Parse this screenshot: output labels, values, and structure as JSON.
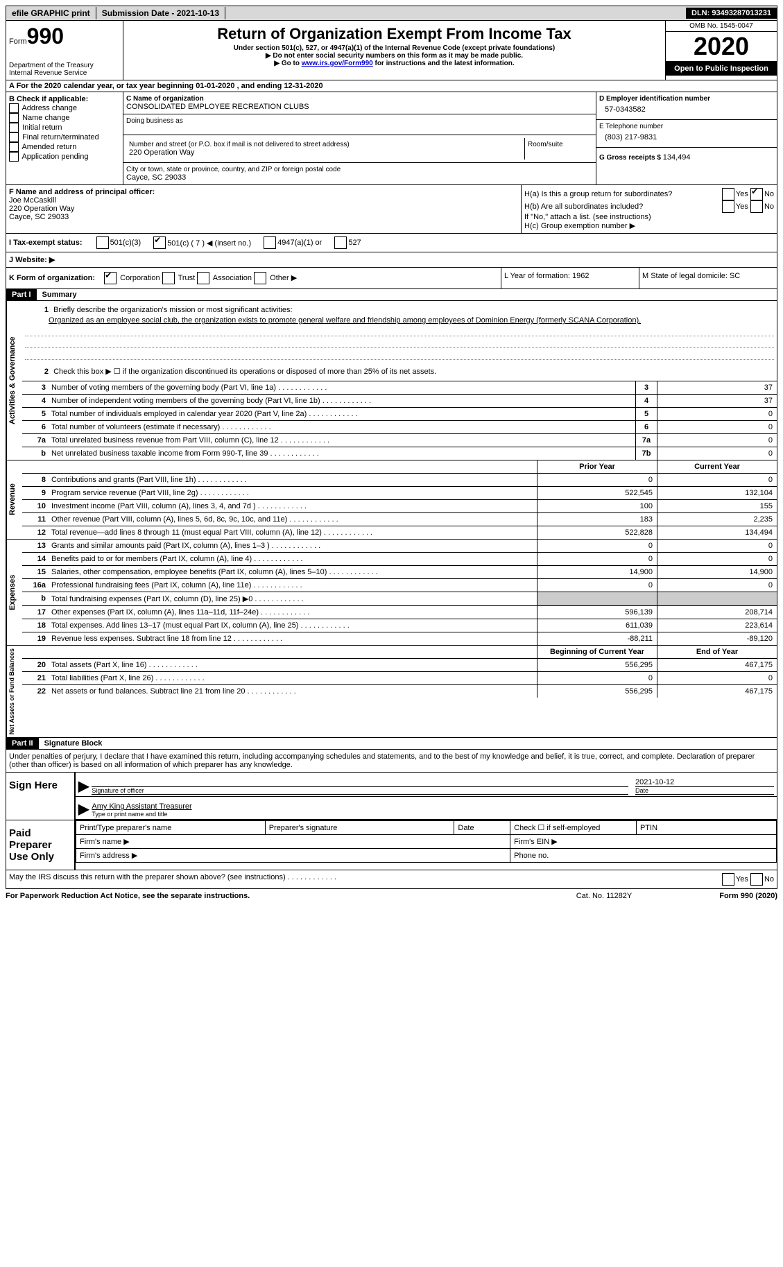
{
  "topbar": {
    "efile": "efile GRAPHIC print",
    "submission": "Submission Date - 2021-10-13",
    "dln": "DLN: 93493287013231"
  },
  "header": {
    "form_word": "Form",
    "form_num": "990",
    "dept1": "Department of the Treasury",
    "dept2": "Internal Revenue Service",
    "title": "Return of Organization Exempt From Income Tax",
    "sub1": "Under section 501(c), 527, or 4947(a)(1) of the Internal Revenue Code (except private foundations)",
    "sub2": "▶ Do not enter social security numbers on this form as it may be made public.",
    "sub3_pre": "▶ Go to ",
    "sub3_link": "www.irs.gov/Form990",
    "sub3_post": " for instructions and the latest information.",
    "omb": "OMB No. 1545-0047",
    "year": "2020",
    "open": "Open to Public Inspection"
  },
  "rowA": "A For the 2020 calendar year, or tax year beginning 01-01-2020     , and ending 12-31-2020",
  "colB": {
    "label": "B Check if applicable:",
    "opts": [
      "Address change",
      "Name change",
      "Initial return",
      "Final return/terminated",
      "Amended return",
      "Application pending"
    ]
  },
  "colC": {
    "name_label": "C Name of organization",
    "name": "CONSOLIDATED EMPLOYEE RECREATION CLUBS",
    "dba_label": "Doing business as",
    "street_label": "Number and street (or P.O. box if mail is not delivered to street address)",
    "room_label": "Room/suite",
    "street": "220 Operation Way",
    "city_label": "City or town, state or province, country, and ZIP or foreign postal code",
    "city": "Cayce, SC  29033"
  },
  "colDE": {
    "d_label": "D Employer identification number",
    "ein": "57-0343582",
    "e_label": "E Telephone number",
    "phone": "(803) 217-9831",
    "g_label": "G Gross receipts $ ",
    "g_val": "134,494"
  },
  "F": {
    "label": "F Name and address of principal officer:",
    "l1": "Joe McCaskill",
    "l2": "220 Operation Way",
    "l3": "Cayce, SC  29033"
  },
  "H": {
    "a": "H(a)  Is this a group return for subordinates?",
    "b": "H(b)  Are all subordinates included?",
    "b2": "If \"No,\" attach a list. (see instructions)",
    "c": "H(c)  Group exemption number ▶",
    "yes": "Yes",
    "no": "No"
  },
  "I": {
    "label": "I   Tax-exempt status:",
    "o1": "501(c)(3)",
    "o2": "501(c) ( 7 ) ◀ (insert no.)",
    "o3": "4947(a)(1) or",
    "o4": "527"
  },
  "J": "J   Website: ▶",
  "K": {
    "label": "K Form of organization:",
    "o1": "Corporation",
    "o2": "Trust",
    "o3": "Association",
    "o4": "Other ▶"
  },
  "L": "L Year of formation: 1962",
  "M": "M State of legal domicile: SC",
  "part1": {
    "num": "Part I",
    "title": "Summary"
  },
  "gov": {
    "side": "Activities & Governance",
    "l1": "Briefly describe the organization's mission or most significant activities:",
    "l1text": "Organized as an employee social club, the organization exists to promote general welfare and friendship among employees of Dominion Energy (formerly SCANA Corporation).",
    "l2": "Check this box ▶ ☐  if the organization discontinued its operations or disposed of more than 25% of its net assets.",
    "rows": [
      {
        "n": "3",
        "d": "Number of voting members of the governing body (Part VI, line 1a)",
        "b": "3",
        "v": "37"
      },
      {
        "n": "4",
        "d": "Number of independent voting members of the governing body (Part VI, line 1b)",
        "b": "4",
        "v": "37"
      },
      {
        "n": "5",
        "d": "Total number of individuals employed in calendar year 2020 (Part V, line 2a)",
        "b": "5",
        "v": "0"
      },
      {
        "n": "6",
        "d": "Total number of volunteers (estimate if necessary)",
        "b": "6",
        "v": "0"
      },
      {
        "n": "7a",
        "d": "Total unrelated business revenue from Part VIII, column (C), line 12",
        "b": "7a",
        "v": "0"
      },
      {
        "n": "b",
        "d": "Net unrelated business taxable income from Form 990-T, line 39",
        "b": "7b",
        "v": "0"
      }
    ]
  },
  "rev": {
    "side": "Revenue",
    "h_prior": "Prior Year",
    "h_curr": "Current Year",
    "rows": [
      {
        "n": "8",
        "d": "Contributions and grants (Part VIII, line 1h)",
        "p": "0",
        "c": "0"
      },
      {
        "n": "9",
        "d": "Program service revenue (Part VIII, line 2g)",
        "p": "522,545",
        "c": "132,104"
      },
      {
        "n": "10",
        "d": "Investment income (Part VIII, column (A), lines 3, 4, and 7d )",
        "p": "100",
        "c": "155"
      },
      {
        "n": "11",
        "d": "Other revenue (Part VIII, column (A), lines 5, 6d, 8c, 9c, 10c, and 11e)",
        "p": "183",
        "c": "2,235"
      },
      {
        "n": "12",
        "d": "Total revenue—add lines 8 through 11 (must equal Part VIII, column (A), line 12)",
        "p": "522,828",
        "c": "134,494"
      }
    ]
  },
  "exp": {
    "side": "Expenses",
    "rows": [
      {
        "n": "13",
        "d": "Grants and similar amounts paid (Part IX, column (A), lines 1–3 )",
        "p": "0",
        "c": "0"
      },
      {
        "n": "14",
        "d": "Benefits paid to or for members (Part IX, column (A), line 4)",
        "p": "0",
        "c": "0"
      },
      {
        "n": "15",
        "d": "Salaries, other compensation, employee benefits (Part IX, column (A), lines 5–10)",
        "p": "14,900",
        "c": "14,900"
      },
      {
        "n": "16a",
        "d": "Professional fundraising fees (Part IX, column (A), line 11e)",
        "p": "0",
        "c": "0"
      },
      {
        "n": "b",
        "d": "Total fundraising expenses (Part IX, column (D), line 25) ▶0",
        "p": "",
        "c": "",
        "grey": true
      },
      {
        "n": "17",
        "d": "Other expenses (Part IX, column (A), lines 11a–11d, 11f–24e)",
        "p": "596,139",
        "c": "208,714"
      },
      {
        "n": "18",
        "d": "Total expenses. Add lines 13–17 (must equal Part IX, column (A), line 25)",
        "p": "611,039",
        "c": "223,614"
      },
      {
        "n": "19",
        "d": "Revenue less expenses. Subtract line 18 from line 12",
        "p": "-88,211",
        "c": "-89,120"
      }
    ]
  },
  "net": {
    "side": "Net Assets or Fund Balances",
    "h_b": "Beginning of Current Year",
    "h_e": "End of Year",
    "rows": [
      {
        "n": "20",
        "d": "Total assets (Part X, line 16)",
        "p": "556,295",
        "c": "467,175"
      },
      {
        "n": "21",
        "d": "Total liabilities (Part X, line 26)",
        "p": "0",
        "c": "0"
      },
      {
        "n": "22",
        "d": "Net assets or fund balances. Subtract line 21 from line 20",
        "p": "556,295",
        "c": "467,175"
      }
    ]
  },
  "part2": {
    "num": "Part II",
    "title": "Signature Block"
  },
  "declare": "Under penalties of perjury, I declare that I have examined this return, including accompanying schedules and statements, and to the best of my knowledge and belief, it is true, correct, and complete. Declaration of preparer (other than officer) is based on all information of which preparer has any knowledge.",
  "sign": {
    "here": "Sign Here",
    "sig_label": "Signature of officer",
    "date": "2021-10-12",
    "date_label": "Date",
    "name": "Amy King  Assistant Treasurer",
    "name_label": "Type or print name and title",
    "paid": "Paid Preparer Use Only",
    "pr_name": "Print/Type preparer's name",
    "pr_sig": "Preparer's signature",
    "pr_date": "Date",
    "pr_check": "Check ☐ if self-employed",
    "ptin": "PTIN",
    "firm_name": "Firm's name   ▶",
    "firm_ein": "Firm's EIN ▶",
    "firm_addr": "Firm's address ▶",
    "phone": "Phone no."
  },
  "discuss": "May the IRS discuss this return with the preparer shown above? (see instructions)",
  "footer": {
    "l": "For Paperwork Reduction Act Notice, see the separate instructions.",
    "c": "Cat. No. 11282Y",
    "r": "Form 990 (2020)"
  }
}
